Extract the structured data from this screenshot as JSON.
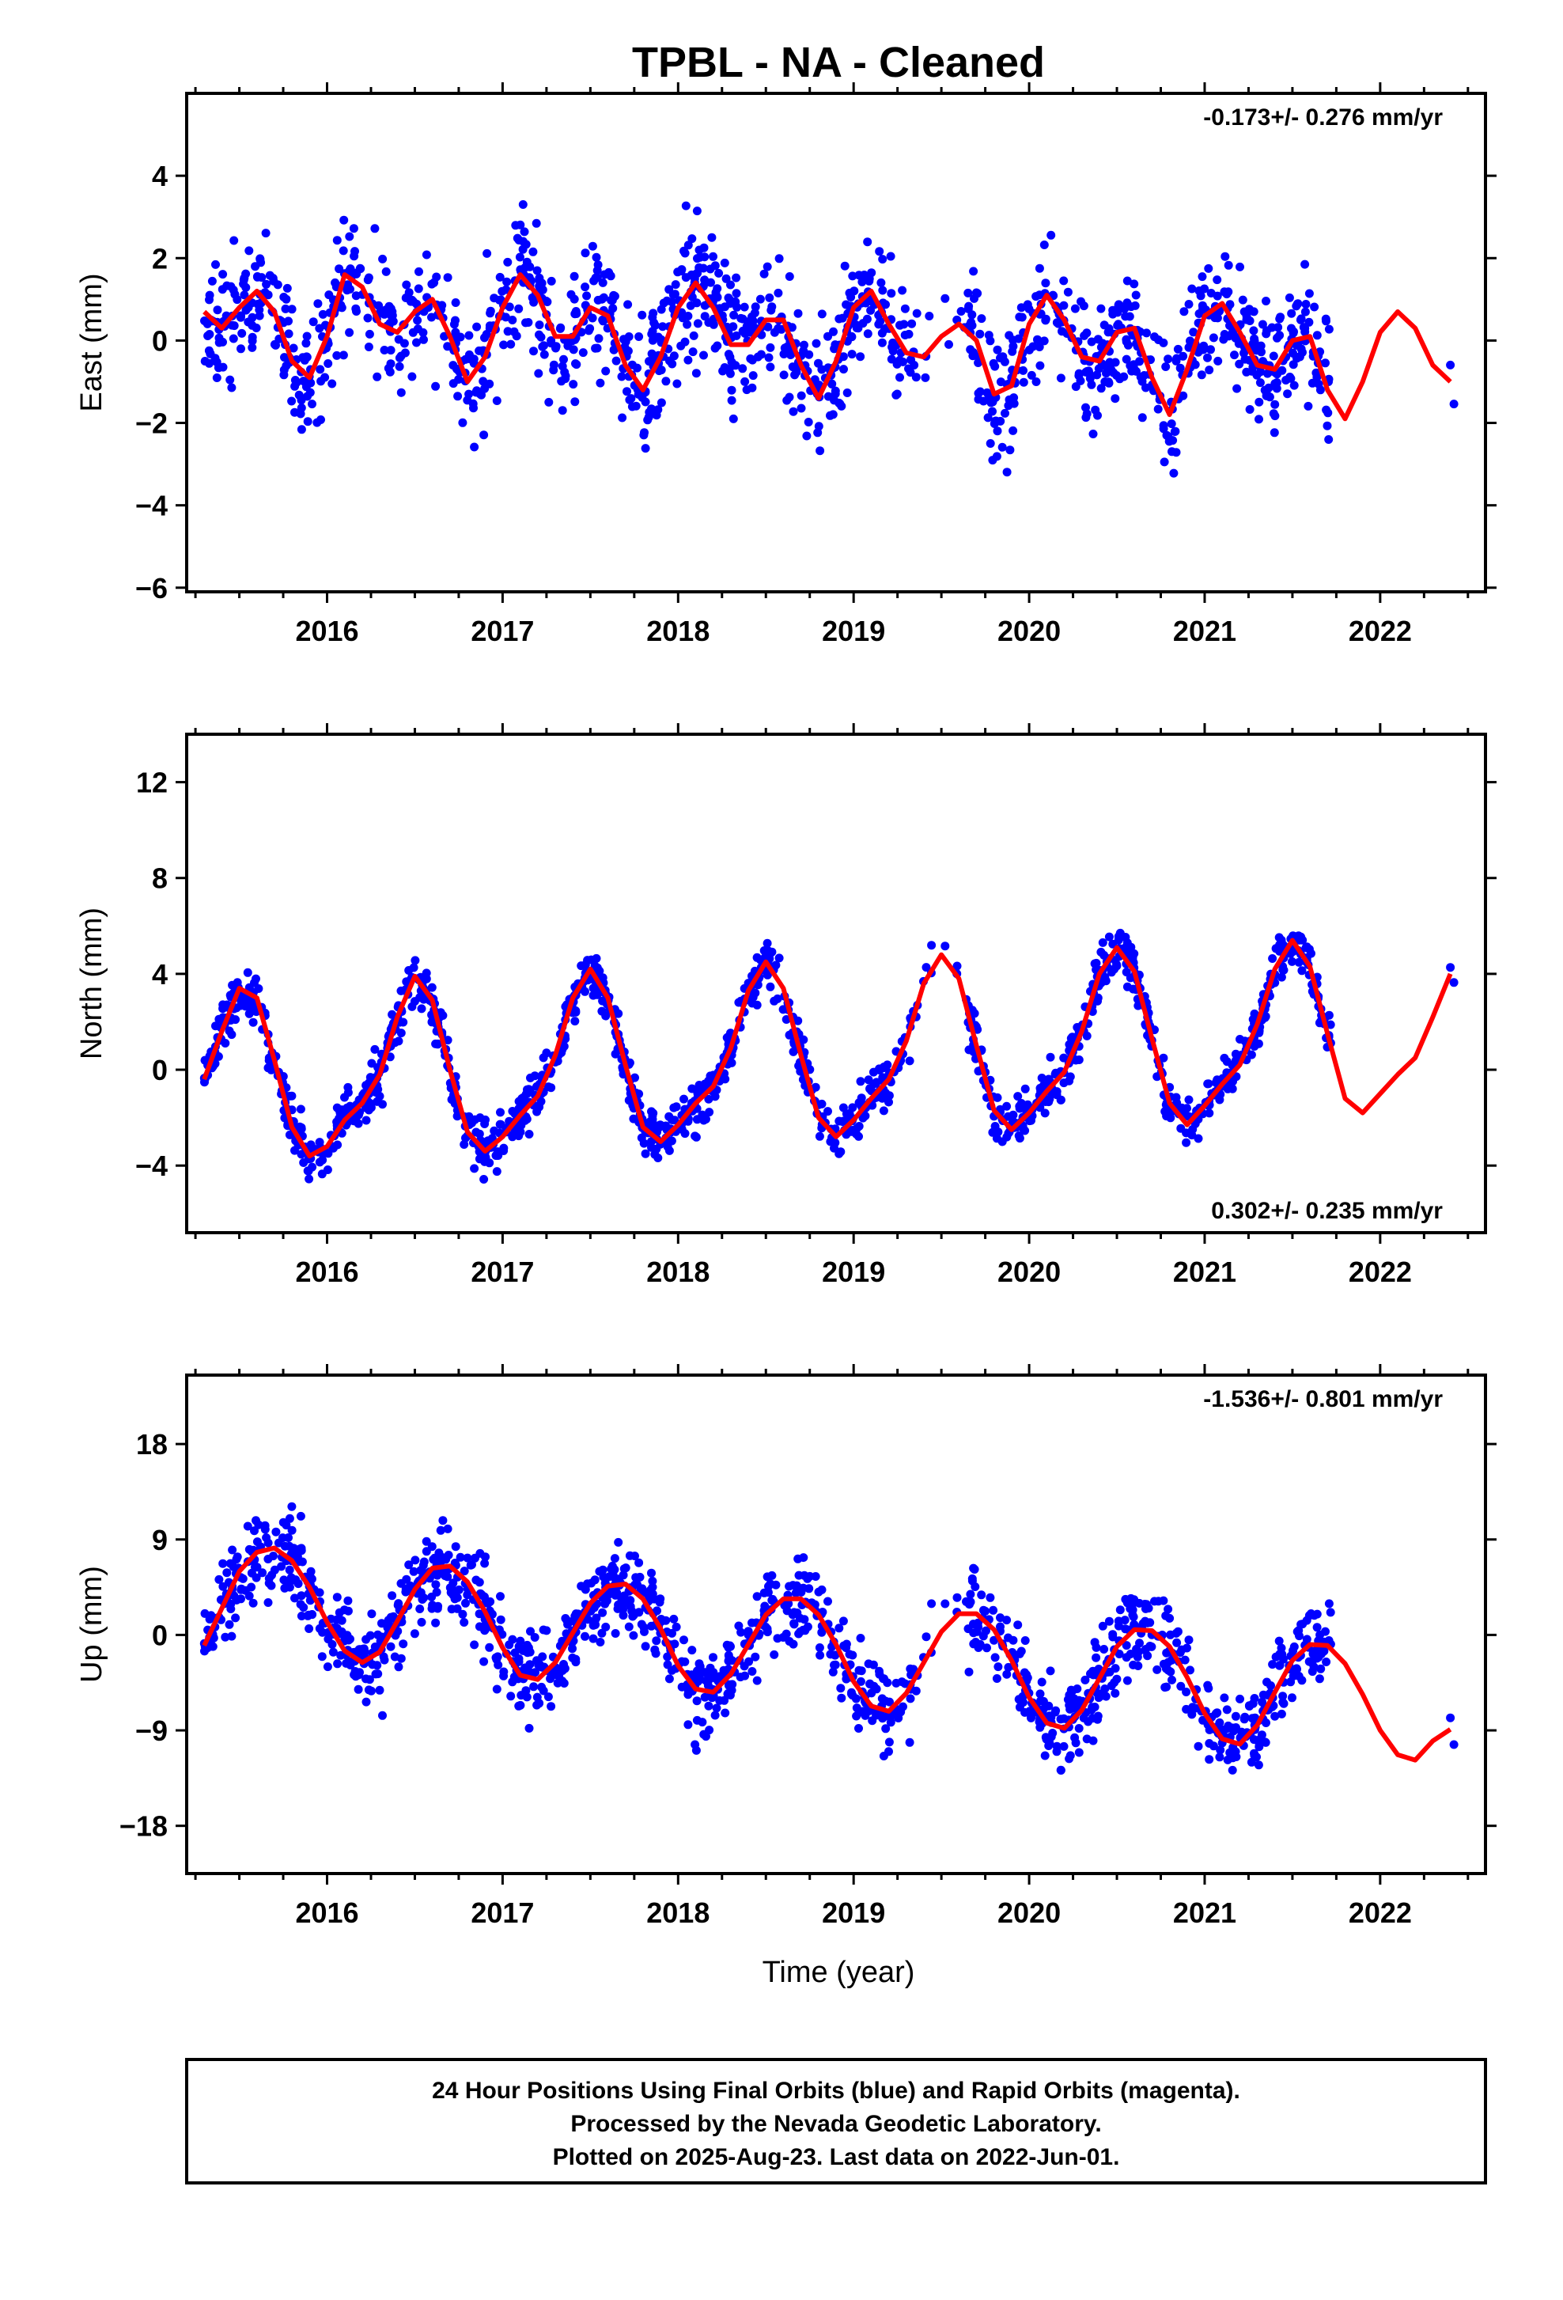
{
  "title": "TPBL  - NA - Cleaned",
  "x_axis_label": "Time (year)",
  "footer": {
    "line1": "24 Hour Positions Using Final Orbits (blue) and Rapid Orbits (magenta).",
    "line2": "Processed by the Nevada Geodetic Laboratory.",
    "line3": "Plotted on 2025-Aug-23. Last data on 2022-Jun-01."
  },
  "colors": {
    "points": "#0000ff",
    "fit": "#ff0000",
    "frame": "#000000"
  },
  "chart_data": [
    {
      "type": "scatter",
      "ylabel": "East (mm)",
      "rate_label": "-0.173+/- 0.276 mm/yr",
      "rate_position": "top-right",
      "xlim": [
        2015.2,
        2022.6
      ],
      "ylim": [
        -6.1,
        6.0
      ],
      "xticks": [
        2016,
        2017,
        2018,
        2019,
        2020,
        2021,
        2022
      ],
      "yticks": [
        -6,
        -4,
        -2,
        0,
        2,
        4
      ],
      "fit": {
        "x": [
          2015.3,
          2015.4,
          2015.5,
          2015.6,
          2015.7,
          2015.8,
          2015.9,
          2016.0,
          2016.1,
          2016.2,
          2016.3,
          2016.4,
          2016.5,
          2016.6,
          2016.7,
          2016.8,
          2016.9,
          2017.0,
          2017.1,
          2017.2,
          2017.3,
          2017.4,
          2017.5,
          2017.6,
          2017.7,
          2017.8,
          2017.9,
          2018.0,
          2018.1,
          2018.2,
          2018.3,
          2018.4,
          2018.5,
          2018.6,
          2018.7,
          2018.8,
          2018.9,
          2019.0,
          2019.1,
          2019.2,
          2019.3,
          2019.4,
          2019.5,
          2019.6,
          2019.7,
          2019.8,
          2019.9,
          2020.0,
          2020.1,
          2020.2,
          2020.3,
          2020.4,
          2020.5,
          2020.6,
          2020.7,
          2020.8,
          2020.9,
          2021.0,
          2021.1,
          2021.2,
          2021.3,
          2021.4,
          2021.5,
          2021.6,
          2021.7,
          2021.8,
          2021.9,
          2022.0,
          2022.1,
          2022.2,
          2022.3,
          2022.4
        ],
        "y": [
          0.7,
          0.3,
          0.8,
          1.2,
          0.7,
          -0.5,
          -0.9,
          0.1,
          1.6,
          1.3,
          0.4,
          0.2,
          0.7,
          1.0,
          0.1,
          -1.0,
          -0.4,
          0.8,
          1.6,
          1.1,
          0.1,
          0.1,
          0.8,
          0.6,
          -0.6,
          -1.2,
          -0.4,
          0.8,
          1.4,
          0.8,
          -0.1,
          -0.1,
          0.5,
          0.5,
          -0.6,
          -1.4,
          -0.5,
          0.8,
          1.2,
          0.4,
          -0.3,
          -0.4,
          0.1,
          0.4,
          0.0,
          -1.3,
          -1.1,
          0.4,
          1.1,
          0.5,
          -0.4,
          -0.5,
          0.2,
          0.3,
          -0.9,
          -1.8,
          -0.7,
          0.6,
          0.9,
          0.2,
          -0.6,
          -0.7,
          0.0,
          0.1,
          -1.2,
          -1.9,
          -1.0,
          0.2,
          0.7,
          0.3,
          -0.6,
          -1.0
        ]
      }
    },
    {
      "type": "scatter",
      "ylabel": "North (mm)",
      "rate_label": "0.302+/- 0.235 mm/yr",
      "rate_position": "bottom-right",
      "xlim": [
        2015.2,
        2022.6
      ],
      "ylim": [
        -6.8,
        14.0
      ],
      "xticks": [
        2016,
        2017,
        2018,
        2019,
        2020,
        2021,
        2022
      ],
      "yticks": [
        -4,
        0,
        4,
        8,
        12
      ],
      "fit": {
        "x": [
          2015.3,
          2015.4,
          2015.5,
          2015.6,
          2015.7,
          2015.8,
          2015.9,
          2016.0,
          2016.1,
          2016.2,
          2016.3,
          2016.4,
          2016.5,
          2016.6,
          2016.7,
          2016.8,
          2016.9,
          2017.0,
          2017.1,
          2017.2,
          2017.3,
          2017.4,
          2017.5,
          2017.6,
          2017.7,
          2017.8,
          2017.9,
          2018.0,
          2018.1,
          2018.2,
          2018.3,
          2018.4,
          2018.5,
          2018.6,
          2018.7,
          2018.8,
          2018.9,
          2019.0,
          2019.1,
          2019.2,
          2019.3,
          2019.4,
          2019.5,
          2019.6,
          2019.7,
          2019.8,
          2019.9,
          2020.0,
          2020.1,
          2020.2,
          2020.3,
          2020.4,
          2020.5,
          2020.6,
          2020.7,
          2020.8,
          2020.9,
          2021.0,
          2021.1,
          2021.2,
          2021.3,
          2021.4,
          2021.5,
          2021.6,
          2021.7,
          2021.8,
          2021.9,
          2022.0,
          2022.1,
          2022.2,
          2022.3,
          2022.4
        ],
        "y": [
          -0.4,
          1.6,
          3.4,
          3.0,
          0.4,
          -2.4,
          -3.6,
          -3.2,
          -2.1,
          -1.4,
          -0.2,
          2.2,
          3.9,
          2.9,
          0.0,
          -2.6,
          -3.4,
          -2.8,
          -1.9,
          -1.1,
          0.6,
          3.0,
          4.2,
          3.0,
          0.2,
          -2.4,
          -3.0,
          -2.3,
          -1.4,
          -0.7,
          0.9,
          3.3,
          4.5,
          3.4,
          0.6,
          -2.0,
          -2.8,
          -2.1,
          -1.2,
          -0.4,
          1.2,
          3.6,
          4.8,
          3.8,
          1.0,
          -1.7,
          -2.5,
          -1.8,
          -0.9,
          -0.1,
          1.6,
          4.0,
          5.1,
          4.1,
          1.3,
          -1.4,
          -2.3,
          -1.5,
          -0.6,
          0.2,
          1.9,
          4.2,
          5.4,
          4.3,
          1.5,
          -1.2,
          -1.8,
          -1.0,
          -0.2,
          0.5,
          2.2,
          4.0
        ]
      }
    },
    {
      "type": "scatter",
      "ylabel": "Up (mm)",
      "rate_label": "-1.536+/- 0.801 mm/yr",
      "rate_position": "top-right",
      "xlim": [
        2015.2,
        2022.6
      ],
      "ylim": [
        -22.5,
        24.5
      ],
      "xticks": [
        2016,
        2017,
        2018,
        2019,
        2020,
        2021,
        2022
      ],
      "yticks": [
        -18,
        -9,
        0,
        9,
        18
      ],
      "fit": {
        "x": [
          2015.3,
          2015.4,
          2015.5,
          2015.6,
          2015.7,
          2015.8,
          2015.9,
          2016.0,
          2016.1,
          2016.2,
          2016.3,
          2016.4,
          2016.5,
          2016.6,
          2016.7,
          2016.8,
          2016.9,
          2017.0,
          2017.1,
          2017.2,
          2017.3,
          2017.4,
          2017.5,
          2017.6,
          2017.7,
          2017.8,
          2017.9,
          2018.0,
          2018.1,
          2018.2,
          2018.3,
          2018.4,
          2018.5,
          2018.6,
          2018.7,
          2018.8,
          2018.9,
          2019.0,
          2019.1,
          2019.2,
          2019.3,
          2019.4,
          2019.5,
          2019.6,
          2019.7,
          2019.8,
          2019.9,
          2020.0,
          2020.1,
          2020.2,
          2020.3,
          2020.4,
          2020.5,
          2020.6,
          2020.7,
          2020.8,
          2020.9,
          2021.0,
          2021.1,
          2021.2,
          2021.3,
          2021.4,
          2021.5,
          2021.6,
          2021.7,
          2021.8,
          2021.9,
          2022.0,
          2022.1,
          2022.2,
          2022.3,
          2022.4
        ],
        "y": [
          -1.0,
          2.5,
          6.0,
          7.8,
          8.2,
          7.0,
          4.5,
          1.2,
          -1.5,
          -2.6,
          -1.6,
          1.3,
          4.3,
          6.3,
          6.5,
          5.0,
          2.2,
          -1.2,
          -3.8,
          -4.2,
          -2.6,
          0.2,
          3.0,
          4.6,
          4.8,
          3.4,
          0.6,
          -2.9,
          -5.1,
          -5.4,
          -3.7,
          -0.9,
          1.9,
          3.4,
          3.4,
          1.9,
          -0.9,
          -4.4,
          -6.7,
          -7.2,
          -5.5,
          -2.6,
          0.3,
          2.0,
          2.0,
          0.5,
          -2.4,
          -5.9,
          -8.3,
          -8.8,
          -7.1,
          -4.1,
          -1.1,
          0.5,
          0.4,
          -1.1,
          -4.0,
          -7.4,
          -9.8,
          -10.3,
          -8.5,
          -5.4,
          -2.4,
          -0.9,
          -1.0,
          -2.7,
          -5.6,
          -9.0,
          -11.3,
          -11.8,
          -10.0,
          -8.9
        ]
      }
    }
  ]
}
